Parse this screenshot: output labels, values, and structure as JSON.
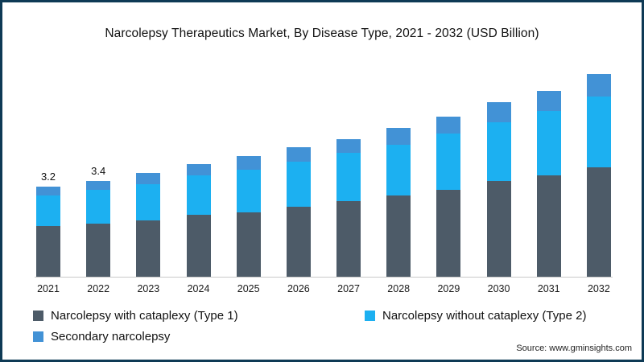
{
  "title": "Narcolepsy Therapeutics Market, By Disease Type, 2021 - 2032 (USD Billion)",
  "source": "Source: www.gminsights.com",
  "colors": {
    "frame_border": "#0e3a55",
    "axis_line": "#c9c9c9",
    "type1": "#4d5b68",
    "type2": "#1cb0f1",
    "secondary": "#4292d6"
  },
  "chart_data": {
    "type": "bar",
    "stacked": true,
    "title": "Narcolepsy Therapeutics Market, By Disease Type, 2021 - 2032 (USD Billion)",
    "xlabel": "",
    "ylabel": "USD Billion",
    "ylim": [
      0,
      7.5
    ],
    "grid": false,
    "legend_position": "bottom-left",
    "categories": [
      "2021",
      "2022",
      "2023",
      "2024",
      "2025",
      "2026",
      "2027",
      "2028",
      "2029",
      "2030",
      "2031",
      "2032"
    ],
    "series": [
      {
        "name": "Narcolepsy with cataplexy (Type 1)",
        "color": "#4d5b68",
        "values": [
          1.8,
          1.9,
          2.0,
          2.2,
          2.3,
          2.5,
          2.7,
          2.9,
          3.1,
          3.4,
          3.6,
          3.9
        ]
      },
      {
        "name": "Narcolepsy without cataplexy (Type 2)",
        "color": "#1cb0f1",
        "values": [
          1.1,
          1.2,
          1.3,
          1.4,
          1.5,
          1.6,
          1.7,
          1.8,
          2.0,
          2.1,
          2.3,
          2.5
        ]
      },
      {
        "name": "Secondary narcolepsy",
        "color": "#4292d6",
        "values": [
          0.3,
          0.3,
          0.4,
          0.4,
          0.5,
          0.5,
          0.5,
          0.6,
          0.6,
          0.7,
          0.7,
          0.8
        ]
      }
    ],
    "totals": [
      3.2,
      3.4,
      3.7,
      4.0,
      4.3,
      4.6,
      4.9,
      5.3,
      5.7,
      6.2,
      6.6,
      7.2
    ],
    "bar_labels": [
      "3.2",
      "3.4",
      "",
      "",
      "",
      "",
      "",
      "",
      "",
      "",
      "",
      ""
    ]
  }
}
